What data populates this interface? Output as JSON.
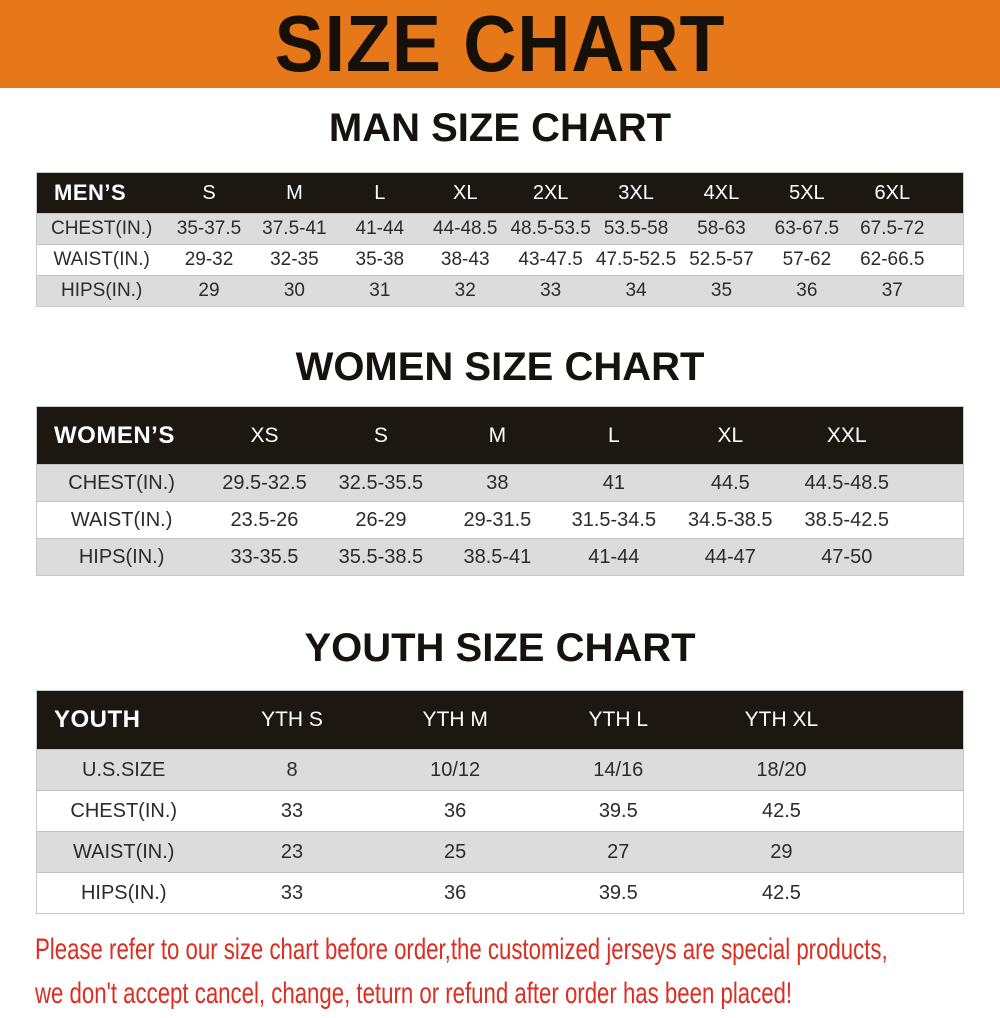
{
  "banner": {
    "title": "SIZE CHART"
  },
  "colors": {
    "banner_bg": "#e6781a",
    "table_header_bg": "#1d1712",
    "row_alt_bg": "#dcdcdc",
    "footer_text": "#dd2d22"
  },
  "sections": {
    "men": {
      "title": "MAN SIZE CHART",
      "header": {
        "label": "MEN’S",
        "sizes": [
          "S",
          "M",
          "L",
          "XL",
          "2XL",
          "3XL",
          "4XL",
          "5XL",
          "6XL"
        ]
      },
      "rows": [
        {
          "label": "CHEST(IN.)",
          "values": [
            "35-37.5",
            "37.5-41",
            "41-44",
            "44-48.5",
            "48.5-53.5",
            "53.5-58",
            "58-63",
            "63-67.5",
            "67.5-72"
          ]
        },
        {
          "label": "WAIST(IN.)",
          "values": [
            "29-32",
            "32-35",
            "35-38",
            "38-43",
            "43-47.5",
            "47.5-52.5",
            "52.5-57",
            "57-62",
            "62-66.5"
          ]
        },
        {
          "label": "HIPS(IN.)",
          "values": [
            "29",
            "30",
            "31",
            "32",
            "33",
            "34",
            "35",
            "36",
            "37"
          ]
        }
      ]
    },
    "women": {
      "title": "WOMEN SIZE CHART",
      "header": {
        "label": "WOMEN’S",
        "sizes": [
          "XS",
          "S",
          "M",
          "L",
          "XL",
          "XXL"
        ]
      },
      "rows": [
        {
          "label": "CHEST(IN.)",
          "values": [
            "29.5-32.5",
            "32.5-35.5",
            "38",
            "41",
            "44.5",
            "44.5-48.5"
          ]
        },
        {
          "label": "WAIST(IN.)",
          "values": [
            "23.5-26",
            "26-29",
            "29-31.5",
            "31.5-34.5",
            "34.5-38.5",
            "38.5-42.5"
          ]
        },
        {
          "label": "HIPS(IN.)",
          "values": [
            "33-35.5",
            "35.5-38.5",
            "38.5-41",
            "41-44",
            "44-47",
            "47-50"
          ]
        }
      ]
    },
    "youth": {
      "title": "YOUTH SIZE CHART",
      "header": {
        "label": "YOUTH",
        "sizes": [
          "YTH S",
          "YTH M",
          "YTH L",
          "YTH XL"
        ]
      },
      "rows": [
        {
          "label": "U.S.SIZE",
          "values": [
            "8",
            "10/12",
            "14/16",
            "18/20"
          ]
        },
        {
          "label": "CHEST(IN.)",
          "values": [
            "33",
            "36",
            "39.5",
            "42.5"
          ]
        },
        {
          "label": "WAIST(IN.)",
          "values": [
            "23",
            "25",
            "27",
            "29"
          ]
        },
        {
          "label": "HIPS(IN.)",
          "values": [
            "33",
            "36",
            "39.5",
            "42.5"
          ]
        }
      ]
    }
  },
  "footer": {
    "line1": "Please refer to our size chart before order,the customized jerseys are special products,",
    "line2": "we don't accept cancel, change, teturn or refund after order has been placed!"
  }
}
